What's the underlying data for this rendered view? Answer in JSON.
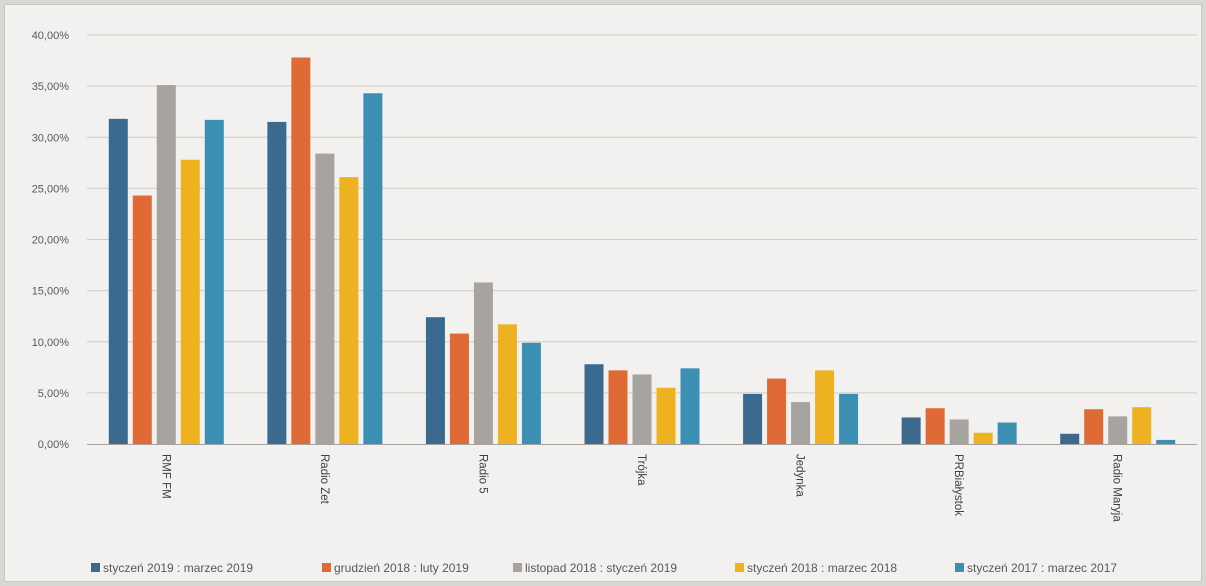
{
  "chart_data": {
    "type": "bar",
    "title": "",
    "xlabel": "",
    "ylabel": "",
    "ylim": [
      0,
      40
    ],
    "y_tick_values": [
      0,
      5,
      10,
      15,
      20,
      25,
      30,
      35,
      40
    ],
    "y_tick_labels": [
      "0,00%",
      "5,00%",
      "10,00%",
      "15,00%",
      "20,00%",
      "25,00%",
      "30,00%",
      "35,00%",
      "40,00%"
    ],
    "grid": true,
    "legend_position": "bottom",
    "categories": [
      "RMF FM",
      "Radio Zet",
      "Radio 5",
      "Trójka",
      "Jedynka",
      "PRBiałystok",
      "Radio Maryja"
    ],
    "series": [
      {
        "name": "styczeń 2019 : marzec 2019",
        "color": "#3b6a8e",
        "values": [
          31.8,
          31.5,
          12.4,
          7.8,
          4.9,
          2.6,
          1.0
        ]
      },
      {
        "name": "grudzień 2018 : luty 2019",
        "color": "#e06a35",
        "values": [
          24.3,
          37.8,
          10.8,
          7.2,
          6.4,
          3.5,
          3.4
        ]
      },
      {
        "name": "listopad 2018 : styczeń 2019",
        "color": "#a7a39f",
        "values": [
          35.1,
          28.4,
          15.8,
          6.8,
          4.1,
          2.4,
          2.7
        ]
      },
      {
        "name": "styczeń 2018 : marzec 2018",
        "color": "#eeb11f",
        "values": [
          27.8,
          26.1,
          11.7,
          5.5,
          7.2,
          1.1,
          3.6
        ]
      },
      {
        "name": "styczeń 2017 : marzec 2017",
        "color": "#3b8fb3",
        "values": [
          31.7,
          34.3,
          9.9,
          7.4,
          4.9,
          2.1,
          0.4
        ]
      }
    ]
  }
}
